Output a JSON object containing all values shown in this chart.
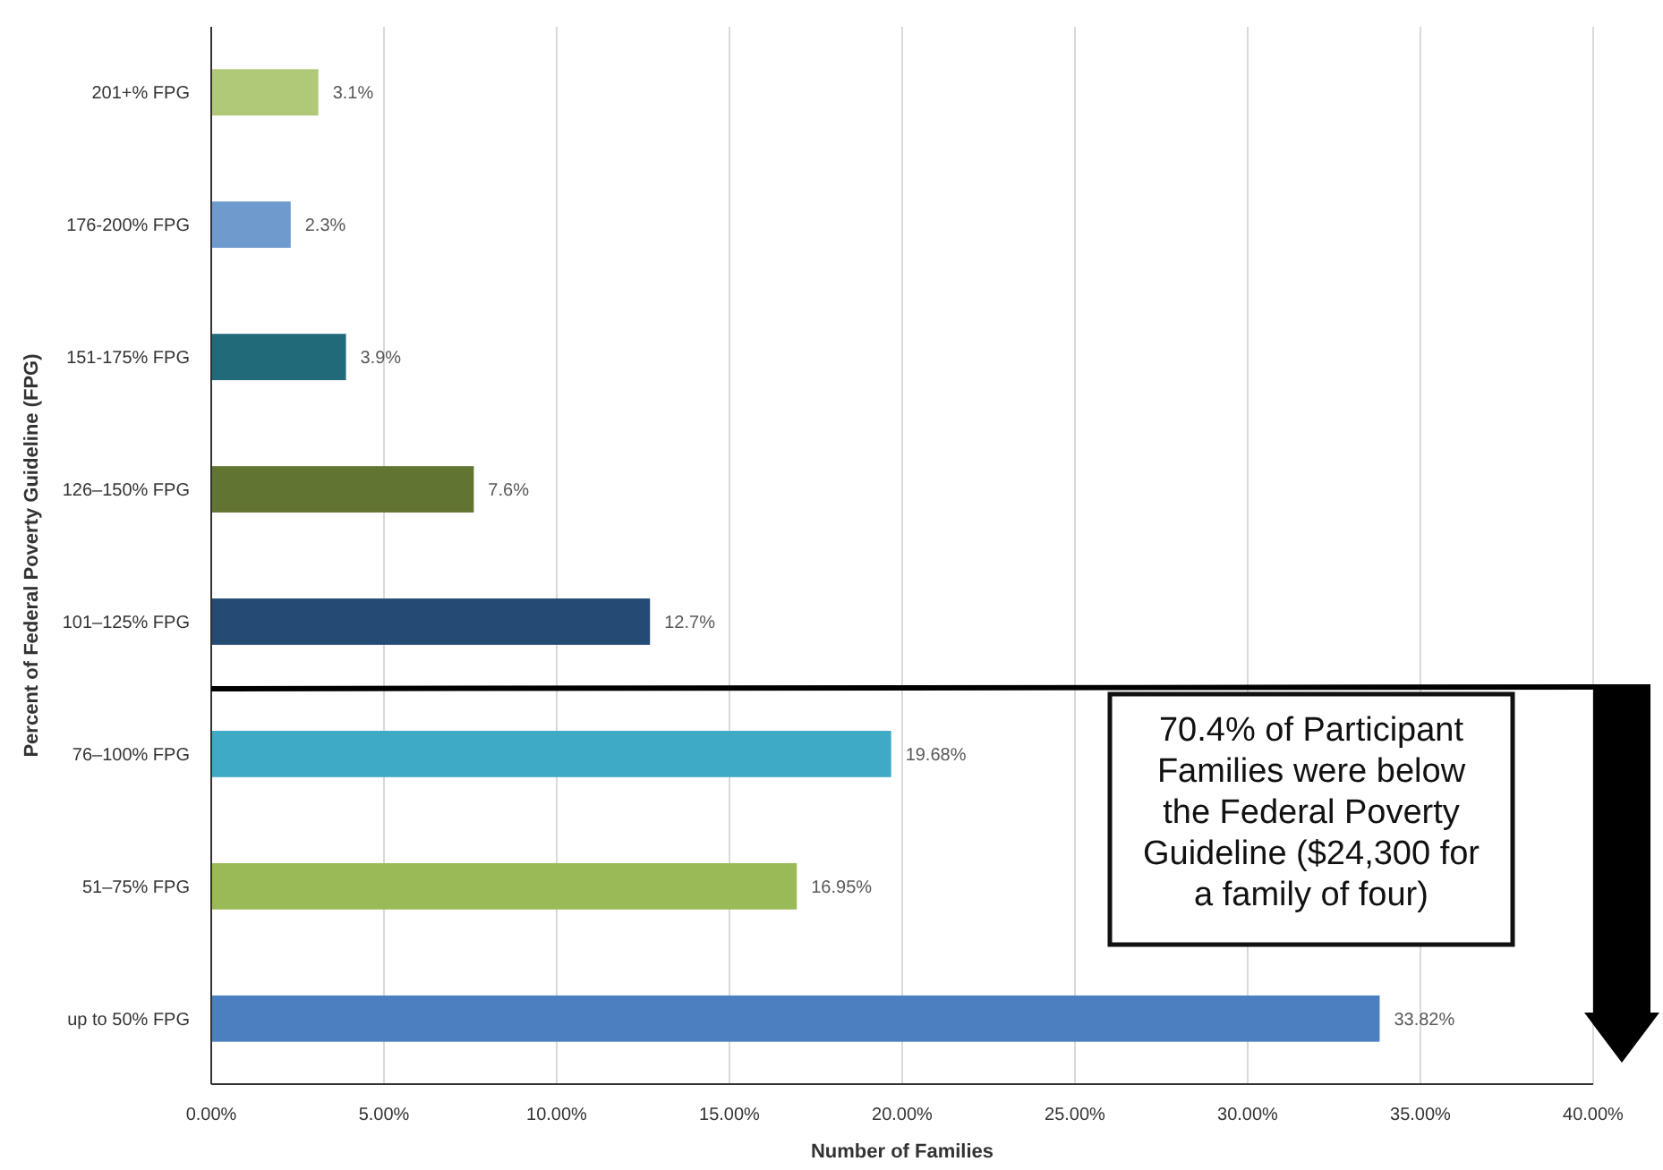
{
  "chart_data": {
    "type": "bar",
    "orientation": "horizontal",
    "categories": [
      "201+% FPG",
      "176-200% FPG",
      "151-175% FPG",
      "126–150% FPG",
      "101–125% FPG",
      "76–100% FPG",
      "51–75% FPG",
      "up to 50% FPG"
    ],
    "values": [
      3.1,
      2.3,
      3.9,
      7.6,
      12.7,
      19.68,
      16.95,
      33.82
    ],
    "colors": [
      "#b0c978",
      "#6f9acd",
      "#206a7a",
      "#627431",
      "#234b74",
      "#3eaac4",
      "#9aba58",
      "#4a80c0"
    ],
    "value_labels": [
      "3.1%",
      "2.3%",
      "3.9%",
      "7.6%",
      "12.7%",
      "19.68%",
      "16.95%",
      "33.82%"
    ],
    "xlim": [
      0,
      40
    ],
    "xticks": [
      {
        "value": 0,
        "label": "0.00%"
      },
      {
        "value": 5,
        "label": "5.00%"
      },
      {
        "value": 10,
        "label": "10.00%"
      },
      {
        "value": 15,
        "label": "15.00%"
      },
      {
        "value": 20,
        "label": "20.00%"
      },
      {
        "value": 25,
        "label": "25.00%"
      },
      {
        "value": 30,
        "label": "30.00%"
      },
      {
        "value": 35,
        "label": "35.00%"
      },
      {
        "value": 40,
        "label": "40.00%"
      }
    ],
    "xlabel": "Number of Families",
    "ylabel": "Percent of Federal Poverty Guideline (FPG)",
    "grid": "x",
    "annotations": [
      "70.4% of Participant Families were below the Federal Poverty Guideline ($24,300 for a family of four)"
    ]
  }
}
